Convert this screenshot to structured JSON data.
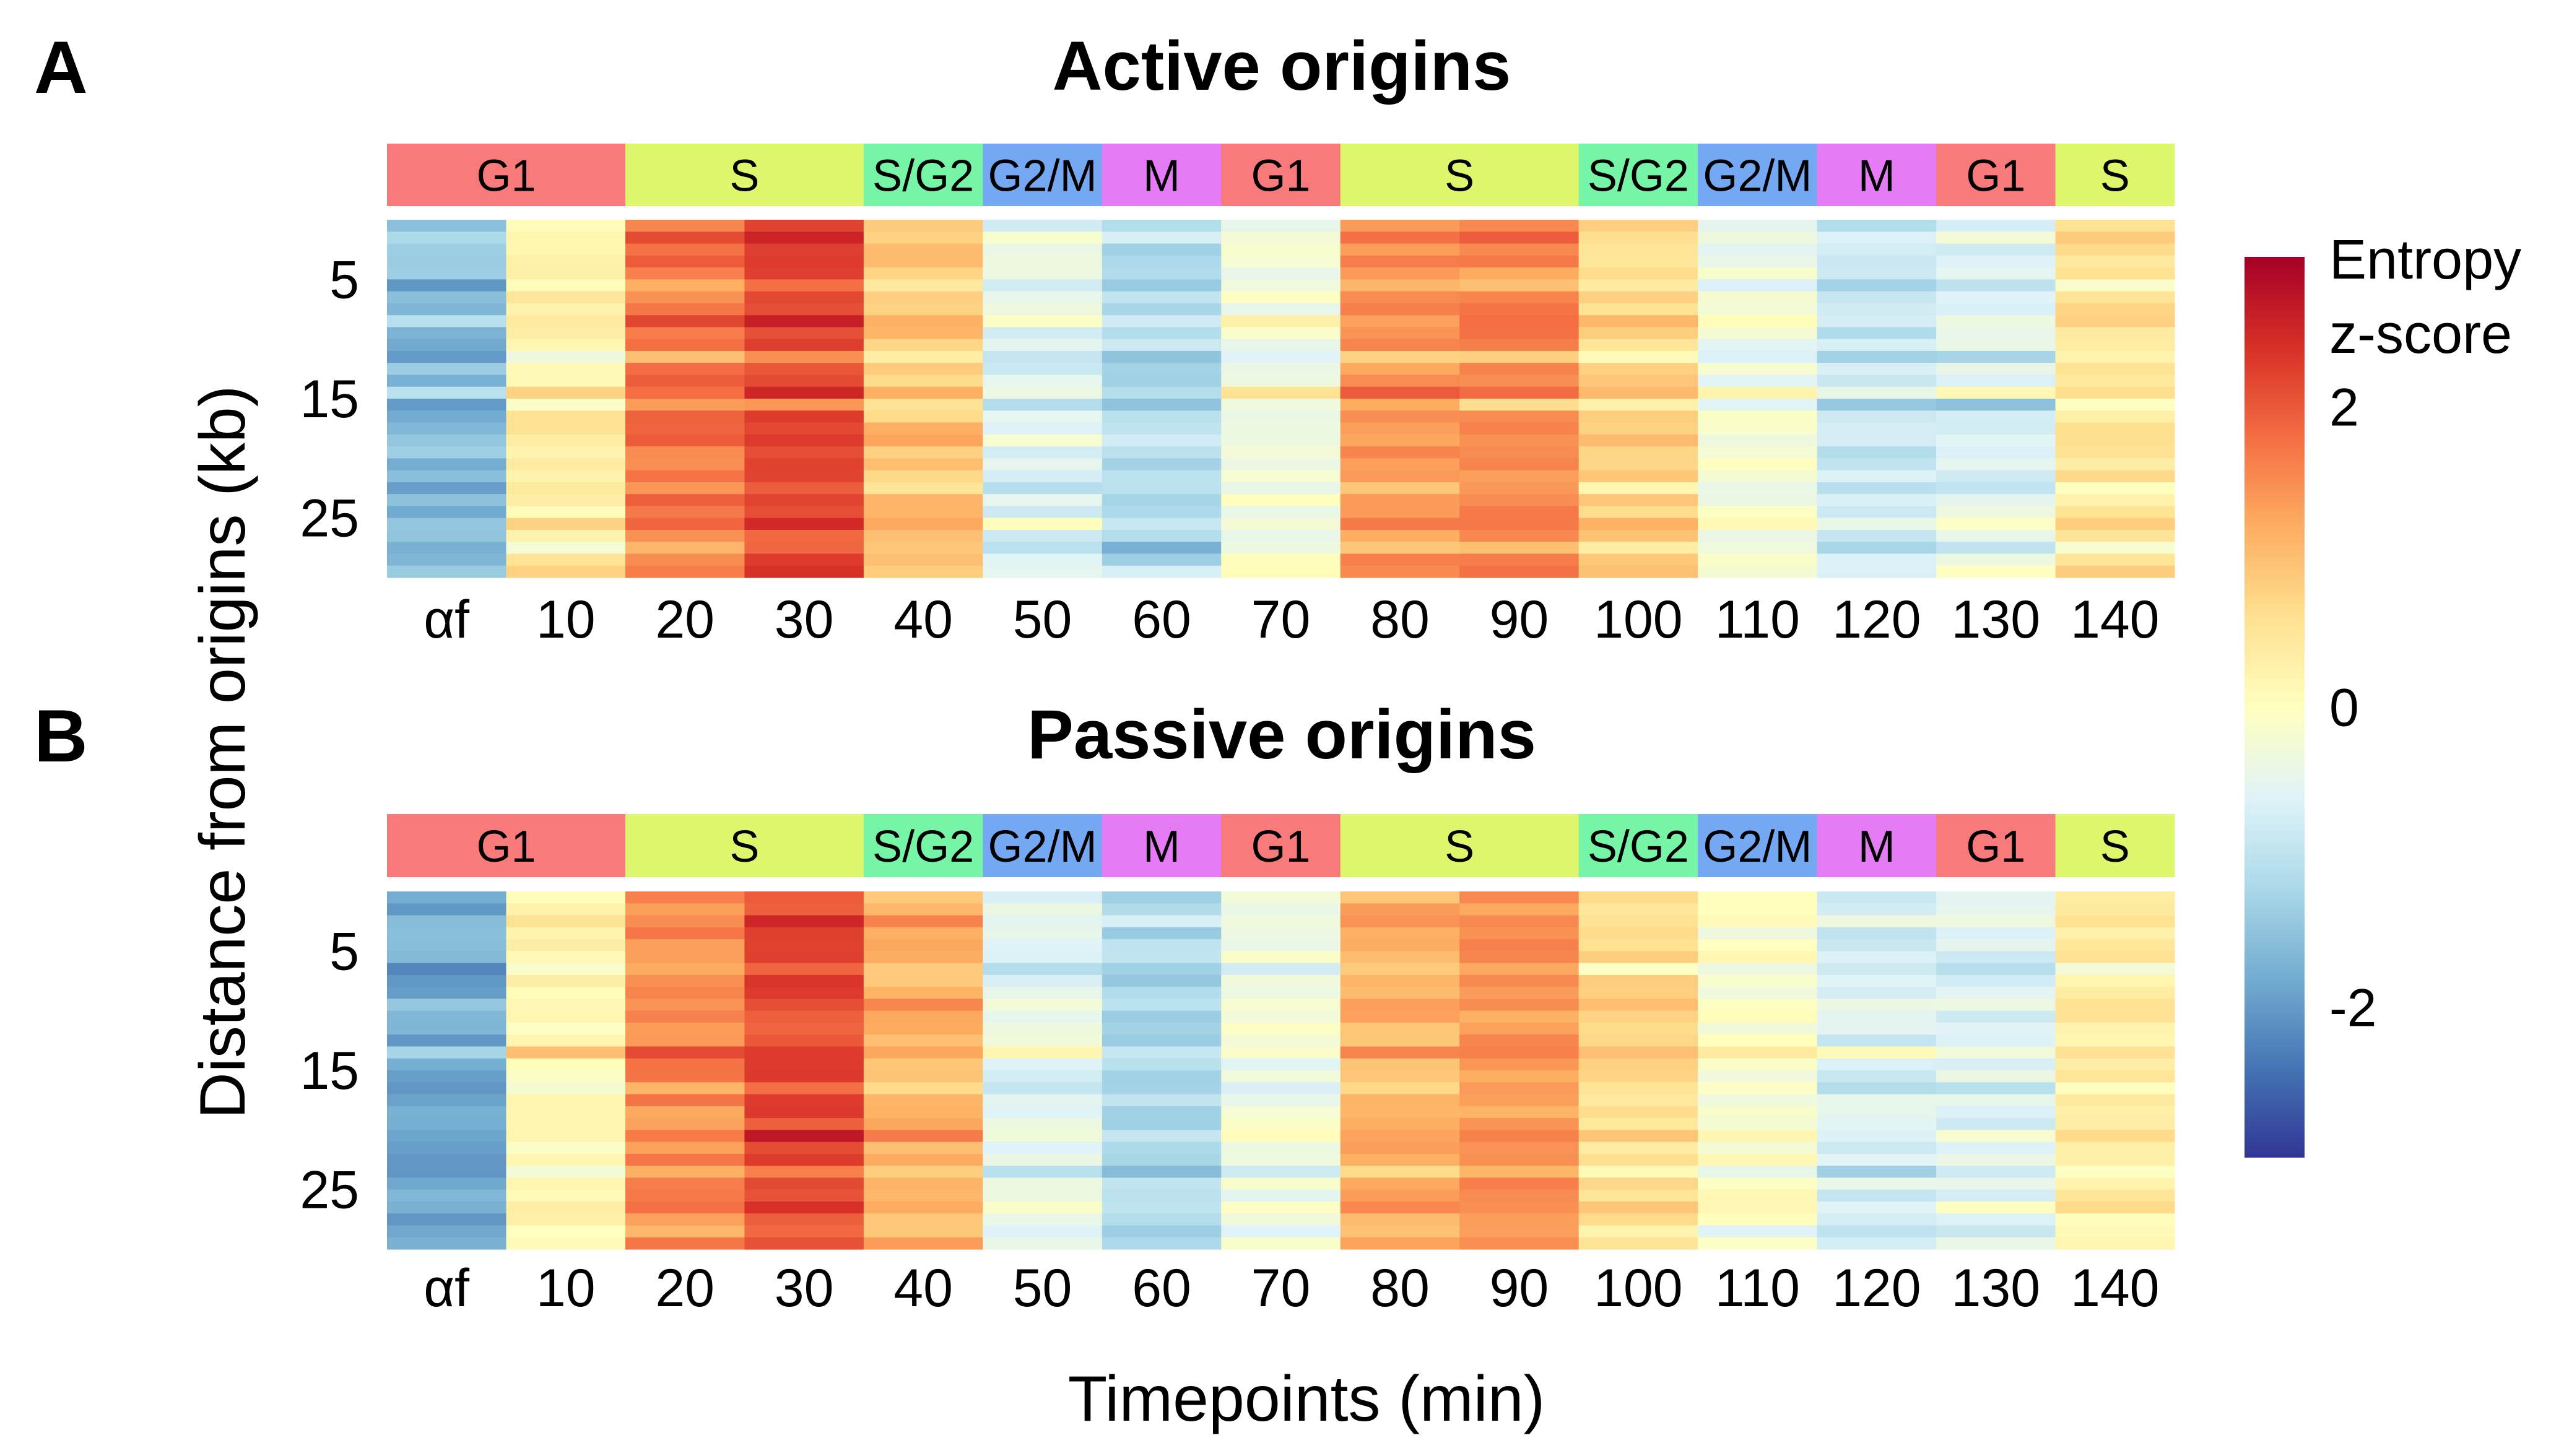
{
  "figure": {
    "ylabel": "Distance from origins (kb)",
    "xlabel": "Timepoints (min)"
  },
  "chart_data": [
    {
      "type": "heatmap",
      "panel": "A",
      "title": "Active origins",
      "xlabel": "Timepoints (min)",
      "ylabel": "Distance from origins (kb)",
      "timepoints": [
        "αf",
        "10",
        "20",
        "30",
        "40",
        "50",
        "60",
        "70",
        "80",
        "90",
        "100",
        "110",
        "120",
        "130",
        "140"
      ],
      "ytick_labels": [
        "5",
        "15",
        "25"
      ],
      "ytick_values": [
        5,
        15,
        25
      ],
      "ylim": [
        0,
        30
      ],
      "phases": [
        {
          "label": "G1",
          "span": 2,
          "color": "#f87a7a"
        },
        {
          "label": "S",
          "span": 2,
          "color": "#dcf76b"
        },
        {
          "label": "S/G2",
          "span": 1,
          "color": "#77f5a6"
        },
        {
          "label": "G2/M",
          "span": 1,
          "color": "#75a8f2"
        },
        {
          "label": "M",
          "span": 1,
          "color": "#e67cf5"
        },
        {
          "label": "G1",
          "span": 1,
          "color": "#f87a7a"
        },
        {
          "label": "S",
          "span": 2,
          "color": "#dcf76b"
        },
        {
          "label": "S/G2",
          "span": 1,
          "color": "#77f5a6"
        },
        {
          "label": "G2/M",
          "span": 1,
          "color": "#75a8f2"
        },
        {
          "label": "M",
          "span": 1,
          "color": "#e67cf5"
        },
        {
          "label": "G1",
          "span": 1,
          "color": "#f87a7a"
        },
        {
          "label": "S",
          "span": 1,
          "color": "#dcf76b"
        }
      ],
      "column_mean_zscore": [
        -1.6,
        0.3,
        1.7,
        2.1,
        0.9,
        -0.6,
        -1.1,
        -0.2,
        1.4,
        1.5,
        0.7,
        -0.3,
        -0.9,
        -0.6,
        0.5
      ],
      "row_profiles": [
        {
          "row": 1,
          "delta": 0.2
        },
        {
          "row": 5,
          "delta": -0.4
        },
        {
          "row": 8,
          "delta": 0.3
        },
        {
          "row": 11,
          "delta": -0.5
        },
        {
          "row": 14,
          "delta": 0.6
        },
        {
          "row": 15,
          "delta": -0.6
        },
        {
          "row": 18,
          "delta": 0.2
        },
        {
          "row": 22,
          "delta": -0.3
        },
        {
          "row": 25,
          "delta": 0.4
        },
        {
          "row": 27,
          "delta": -0.5
        },
        {
          "row": 29,
          "delta": 0.3
        }
      ]
    },
    {
      "type": "heatmap",
      "panel": "B",
      "title": "Passive origins",
      "xlabel": "Timepoints (min)",
      "ylabel": "Distance from origins (kb)",
      "timepoints": [
        "αf",
        "10",
        "20",
        "30",
        "40",
        "50",
        "60",
        "70",
        "80",
        "90",
        "100",
        "110",
        "120",
        "130",
        "140"
      ],
      "ytick_labels": [
        "5",
        "15",
        "25"
      ],
      "ytick_values": [
        5,
        15,
        25
      ],
      "ylim": [
        0,
        30
      ],
      "phases": [
        {
          "label": "G1",
          "span": 2,
          "color": "#f87a7a"
        },
        {
          "label": "S",
          "span": 2,
          "color": "#dcf76b"
        },
        {
          "label": "S/G2",
          "span": 1,
          "color": "#77f5a6"
        },
        {
          "label": "G2/M",
          "span": 1,
          "color": "#75a8f2"
        },
        {
          "label": "M",
          "span": 1,
          "color": "#e67cf5"
        },
        {
          "label": "G1",
          "span": 1,
          "color": "#f87a7a"
        },
        {
          "label": "S",
          "span": 2,
          "color": "#dcf76b"
        },
        {
          "label": "S/G2",
          "span": 1,
          "color": "#77f5a6"
        },
        {
          "label": "G2/M",
          "span": 1,
          "color": "#75a8f2"
        },
        {
          "label": "M",
          "span": 1,
          "color": "#e67cf5"
        },
        {
          "label": "G1",
          "span": 1,
          "color": "#f87a7a"
        },
        {
          "label": "S",
          "span": 1,
          "color": "#dcf76b"
        }
      ],
      "column_mean_zscore": [
        -1.8,
        0.1,
        1.5,
        2.1,
        1.1,
        -0.5,
        -1.2,
        -0.3,
        1.1,
        1.4,
        0.6,
        -0.1,
        -0.7,
        -0.6,
        0.3
      ],
      "row_profiles": [
        {
          "row": 2,
          "delta": 0.3
        },
        {
          "row": 6,
          "delta": -0.4
        },
        {
          "row": 9,
          "delta": 0.2
        },
        {
          "row": 13,
          "delta": 0.6
        },
        {
          "row": 16,
          "delta": -0.3
        },
        {
          "row": 20,
          "delta": 0.3
        },
        {
          "row": 23,
          "delta": -0.4
        },
        {
          "row": 26,
          "delta": 0.4
        },
        {
          "row": 28,
          "delta": -0.3
        }
      ]
    }
  ],
  "legend": {
    "title_line1": "Entropy",
    "title_line2": "z-score",
    "tick_labels": [
      "2",
      "0",
      "-2"
    ],
    "tick_values": [
      2,
      0,
      -2
    ],
    "range": [
      -3,
      3
    ]
  }
}
